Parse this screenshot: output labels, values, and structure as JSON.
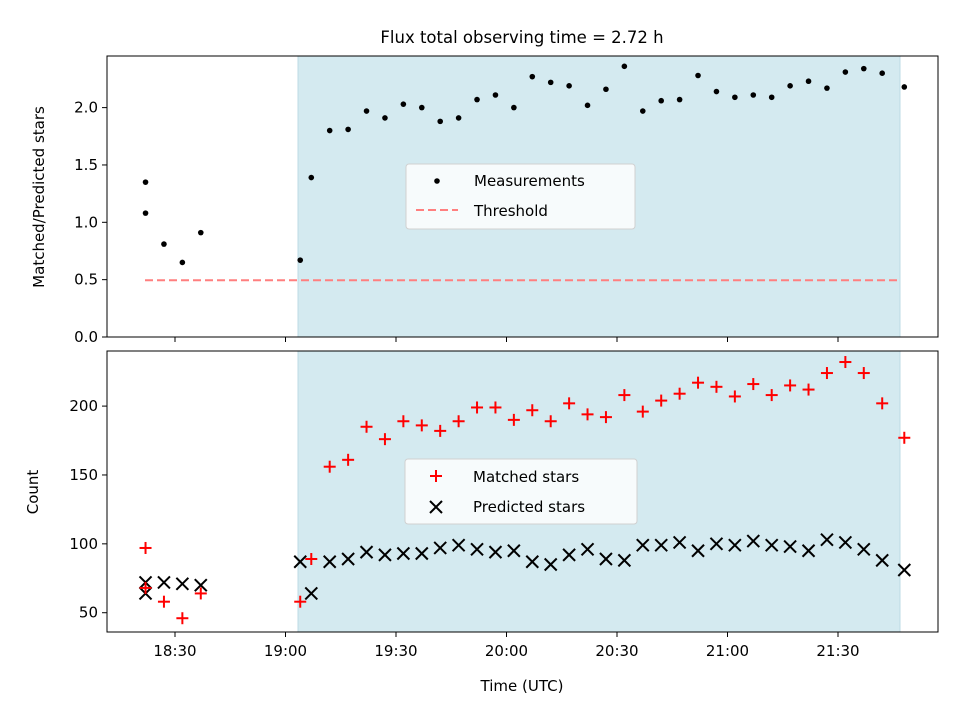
{
  "figure": {
    "title": "Flux total observing time = 2.72 h",
    "xlabel": "Time (UTC)",
    "x_tick_labels": [
      "18:30",
      "19:00",
      "19:30",
      "20:00",
      "20:30",
      "21:00",
      "21:30"
    ],
    "colors": {
      "span": "#d4eaf0",
      "span_edge": "#bcdbe4",
      "measurement": "#000000",
      "threshold": "#ff7f7f",
      "matched": "#ff0000",
      "predicted": "#000000"
    }
  },
  "chart_data": [
    {
      "type": "scatter",
      "ylabel": "Matched/Predicted stars",
      "ylim": [
        0,
        2.45
      ],
      "yticks": [
        "0.0",
        "0.5",
        "1.0",
        "1.5",
        "2.0"
      ],
      "shaded_span": [
        "19:04",
        "21:48"
      ],
      "legend": {
        "placement": "center",
        "entries": [
          "Measurements",
          "Threshold"
        ]
      },
      "threshold": {
        "name": "Threshold",
        "value": 0.5,
        "x_range": [
          "18:22",
          "21:48"
        ]
      },
      "series": [
        {
          "name": "Measurements",
          "x": [
            "18:22",
            "18:22",
            "18:27",
            "18:32",
            "18:37",
            "19:04",
            "19:07",
            "19:12",
            "19:17",
            "19:22",
            "19:27",
            "19:32",
            "19:37",
            "19:42",
            "19:47",
            "19:52",
            "19:57",
            "20:02",
            "20:07",
            "20:12",
            "20:17",
            "20:22",
            "20:27",
            "20:32",
            "20:37",
            "20:42",
            "20:47",
            "20:52",
            "20:57",
            "21:02",
            "21:07",
            "21:12",
            "21:17",
            "21:22",
            "21:27",
            "21:32",
            "21:37",
            "21:42",
            "21:48"
          ],
          "values": [
            1.35,
            1.08,
            0.81,
            0.65,
            0.91,
            0.67,
            1.39,
            1.8,
            1.81,
            1.97,
            1.91,
            2.03,
            2.0,
            1.88,
            1.91,
            2.07,
            2.11,
            2.0,
            2.27,
            2.22,
            2.19,
            2.02,
            2.16,
            2.36,
            1.97,
            2.06,
            2.07,
            2.28,
            2.14,
            2.09,
            2.11,
            2.09,
            2.19,
            2.23,
            2.17,
            2.31,
            2.34,
            2.3,
            2.18
          ]
        }
      ]
    },
    {
      "type": "scatter",
      "ylabel": "Count",
      "ylim": [
        36,
        240
      ],
      "yticks": [
        "50",
        "100",
        "150",
        "200"
      ],
      "shaded_span": [
        "19:04",
        "21:48"
      ],
      "legend": {
        "placement": "center",
        "entries": [
          "Matched stars",
          "Predicted stars"
        ]
      },
      "series": [
        {
          "name": "Matched stars",
          "x": [
            "18:22",
            "18:22",
            "18:27",
            "18:32",
            "18:37",
            "19:04",
            "19:07",
            "19:12",
            "19:17",
            "19:22",
            "19:27",
            "19:32",
            "19:37",
            "19:42",
            "19:47",
            "19:52",
            "19:57",
            "20:02",
            "20:07",
            "20:12",
            "20:17",
            "20:22",
            "20:27",
            "20:32",
            "20:37",
            "20:42",
            "20:47",
            "20:52",
            "20:57",
            "21:02",
            "21:07",
            "21:12",
            "21:17",
            "21:22",
            "21:27",
            "21:32",
            "21:37",
            "21:42",
            "21:48"
          ],
          "values": [
            97,
            68,
            58,
            46,
            64,
            58,
            89,
            156,
            161,
            185,
            176,
            189,
            186,
            182,
            189,
            199,
            199,
            190,
            197,
            189,
            202,
            194,
            192,
            208,
            196,
            204,
            209,
            217,
            214,
            207,
            216,
            208,
            215,
            212,
            224,
            232,
            224,
            202,
            177
          ]
        },
        {
          "name": "Predicted stars",
          "x": [
            "18:22",
            "18:22",
            "18:27",
            "18:32",
            "18:37",
            "19:04",
            "19:07",
            "19:12",
            "19:17",
            "19:22",
            "19:27",
            "19:32",
            "19:37",
            "19:42",
            "19:47",
            "19:52",
            "19:57",
            "20:02",
            "20:07",
            "20:12",
            "20:17",
            "20:22",
            "20:27",
            "20:32",
            "20:37",
            "20:42",
            "20:47",
            "20:52",
            "20:57",
            "21:02",
            "21:07",
            "21:12",
            "21:17",
            "21:22",
            "21:27",
            "21:32",
            "21:37",
            "21:42",
            "21:48"
          ],
          "values": [
            72,
            64,
            72,
            71,
            70,
            87,
            64,
            87,
            89,
            94,
            92,
            93,
            93,
            97,
            99,
            96,
            94,
            95,
            87,
            85,
            92,
            96,
            89,
            88,
            99,
            99,
            101,
            95,
            100,
            99,
            102,
            99,
            98,
            95,
            103,
            101,
            96,
            88,
            81
          ]
        }
      ]
    }
  ]
}
